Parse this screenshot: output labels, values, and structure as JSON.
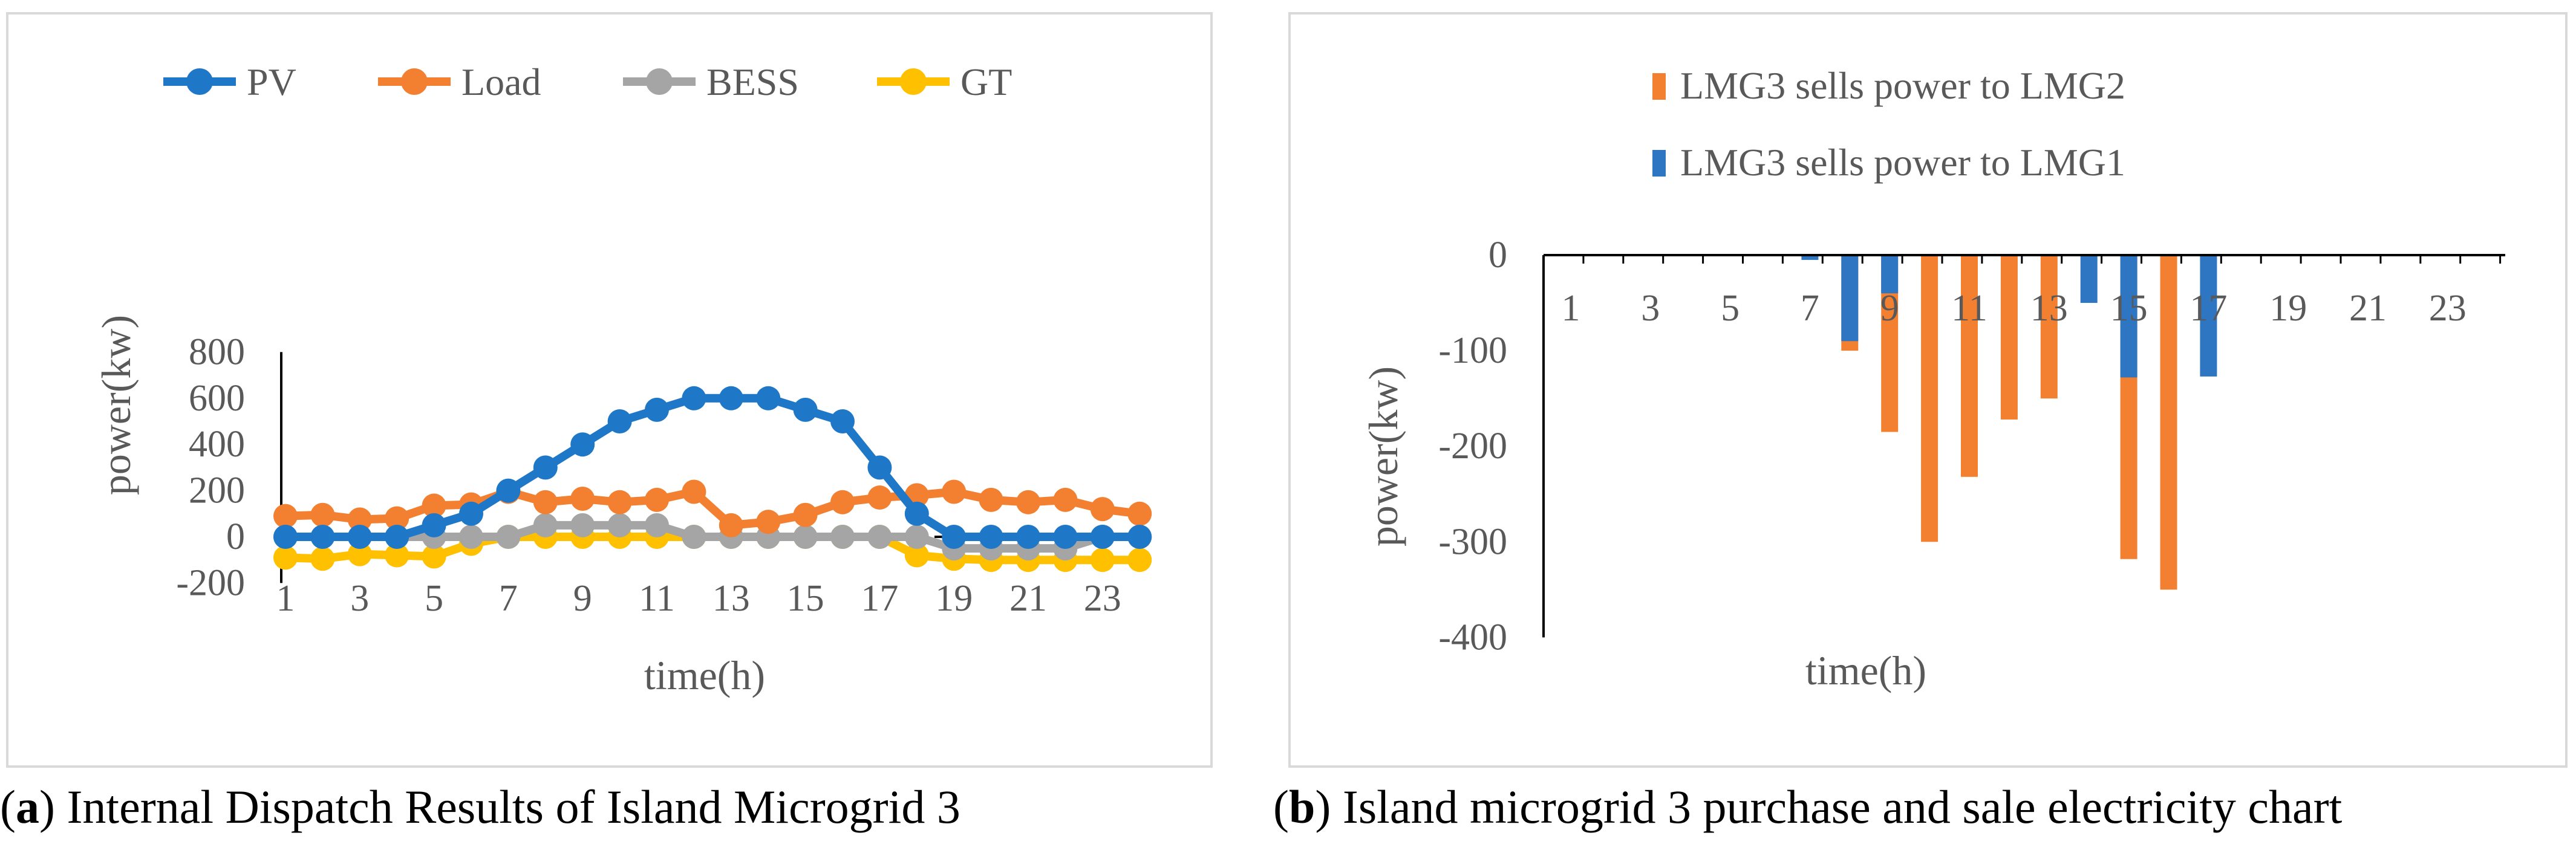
{
  "captions": {
    "a_label": "a",
    "a_text": ") Internal Dispatch Results of Island Microgrid 3",
    "b_label": "b",
    "b_text": ") Island microgrid 3 purchase and sale electricity chart",
    "open_paren": "("
  },
  "chart_data": [
    {
      "type": "line",
      "title": "",
      "xlabel": "time(h)",
      "ylabel": "power(kw)",
      "ylim": [
        -200,
        800
      ],
      "yticks": [
        -200,
        0,
        200,
        400,
        600,
        800
      ],
      "xtick_labels": [
        "1",
        "3",
        "5",
        "7",
        "9",
        "11",
        "13",
        "15",
        "17",
        "19",
        "21",
        "23"
      ],
      "x": [
        1,
        2,
        3,
        4,
        5,
        6,
        7,
        8,
        9,
        10,
        11,
        12,
        13,
        14,
        15,
        16,
        17,
        18,
        19,
        20,
        21,
        22,
        23,
        24
      ],
      "series": [
        {
          "name": "PV",
          "color": "#1f77c8",
          "values": [
            0,
            0,
            0,
            0,
            50,
            100,
            200,
            300,
            400,
            500,
            550,
            600,
            600,
            600,
            550,
            500,
            300,
            100,
            0,
            0,
            0,
            0,
            0,
            0
          ]
        },
        {
          "name": "Load",
          "color": "#f28030",
          "values": [
            90,
            95,
            75,
            80,
            135,
            140,
            195,
            150,
            165,
            150,
            160,
            195,
            50,
            65,
            95,
            150,
            170,
            180,
            195,
            160,
            150,
            160,
            120,
            100
          ]
        },
        {
          "name": "BESS",
          "color": "#a5a5a5",
          "values": [
            0,
            0,
            0,
            0,
            0,
            0,
            0,
            50,
            50,
            50,
            50,
            0,
            0,
            0,
            0,
            0,
            0,
            0,
            -50,
            -50,
            -50,
            -50,
            0,
            0
          ]
        },
        {
          "name": "GT",
          "color": "#ffc000",
          "values": [
            -90,
            -95,
            -75,
            -80,
            -85,
            -30,
            0,
            0,
            0,
            0,
            0,
            0,
            0,
            0,
            0,
            0,
            0,
            -80,
            -95,
            -100,
            -100,
            -100,
            -100,
            -100
          ]
        }
      ],
      "legend_position": "top"
    },
    {
      "type": "bar",
      "title": "",
      "xlabel": "time(h)",
      "ylabel": "power(kw)",
      "ylim": [
        -400,
        0
      ],
      "yticks": [
        -400,
        -300,
        -200,
        -100,
        0
      ],
      "xtick_labels": [
        "1",
        "3",
        "5",
        "7",
        "9",
        "11",
        "13",
        "15",
        "17",
        "19",
        "21",
        "23"
      ],
      "x": [
        1,
        2,
        3,
        4,
        5,
        6,
        7,
        8,
        9,
        10,
        11,
        12,
        13,
        14,
        15,
        16,
        17,
        18,
        19,
        20,
        21,
        22,
        23,
        24
      ],
      "series": [
        {
          "name": "LMG3 sells power to  LMG2",
          "color": "#f28030",
          "values": [
            0,
            0,
            0,
            0,
            0,
            0,
            0,
            -100,
            -185,
            -300,
            -232,
            -172,
            -150,
            0,
            -318,
            -350,
            0,
            0,
            0,
            0,
            0,
            0,
            0,
            0
          ]
        },
        {
          "name": "LMG3 sells power to  LMG1",
          "color": "#2e75c2",
          "values": [
            0,
            0,
            0,
            0,
            0,
            0,
            -5,
            -90,
            -40,
            0,
            0,
            0,
            0,
            -50,
            -128,
            0,
            -127,
            0,
            0,
            0,
            0,
            0,
            0,
            0
          ]
        }
      ],
      "legend_position": "top-center"
    }
  ]
}
